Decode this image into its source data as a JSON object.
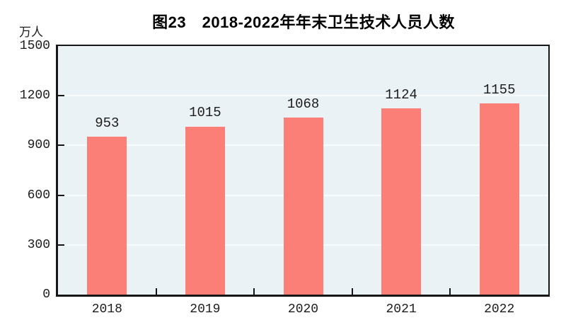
{
  "chart_data": {
    "type": "bar",
    "title": "图23　2018-2022年年末卫生技术人员人数",
    "unit_label": "万人",
    "categories": [
      "2018",
      "2019",
      "2020",
      "2021",
      "2022"
    ],
    "values": [
      953,
      1015,
      1068,
      1124,
      1155
    ],
    "ylim": [
      0,
      1500
    ],
    "yticks": [
      0,
      300,
      600,
      900,
      1200,
      1500
    ],
    "grid": true,
    "legend": null,
    "bar_color": "#fb7e77",
    "plot_bg_color": "#ebf2f6",
    "axis_color": "#161616",
    "text_color": "#1c1c1c"
  }
}
